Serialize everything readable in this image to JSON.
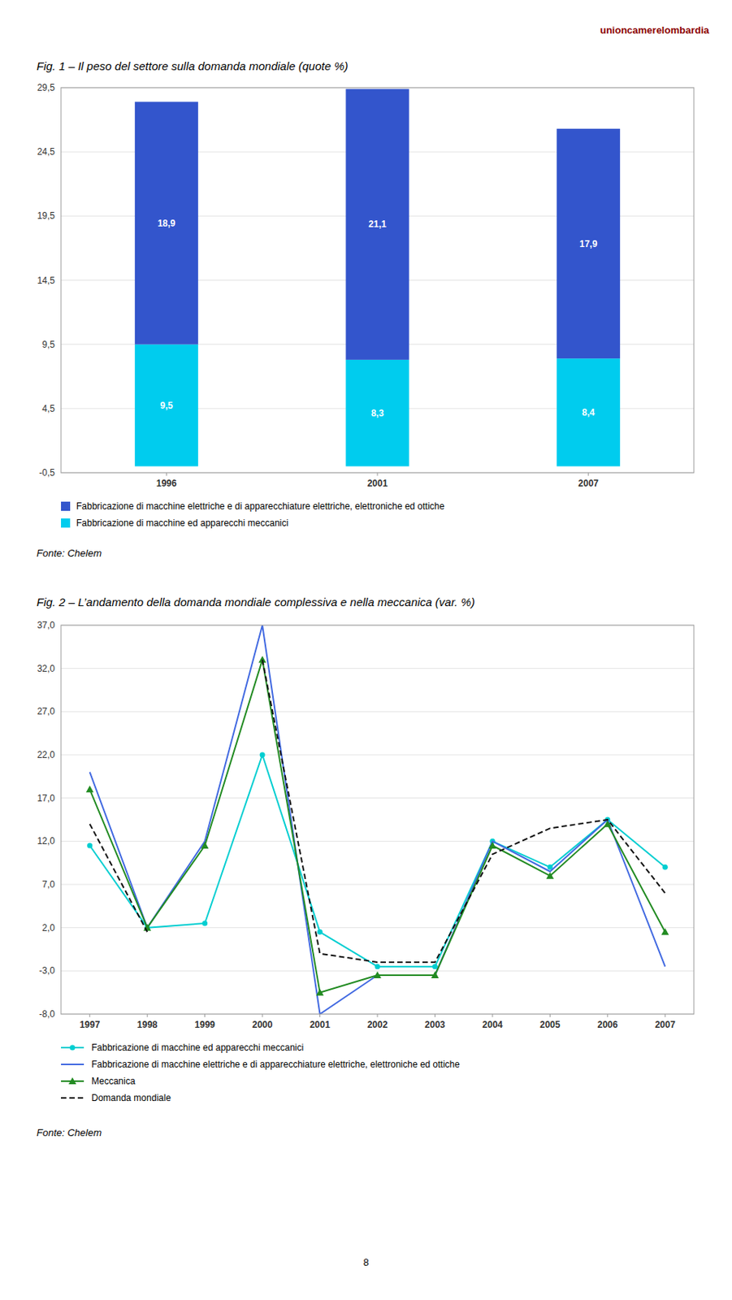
{
  "chart_data": [
    {
      "type": "bar",
      "stacked": true,
      "title": "Fig. 1 – Il peso del settore sulla domanda mondiale (quote %)",
      "categories": [
        "1996",
        "2001",
        "2007"
      ],
      "series": [
        {
          "name": "Fabbricazione di macchine ed apparecchi meccanici",
          "color": "#00CCEE",
          "values": [
            9.5,
            8.3,
            8.4
          ],
          "value_labels": [
            "9,5",
            "8,3",
            "8,4"
          ]
        },
        {
          "name": "Fabbricazione di macchine elettriche e di apparecchiature elettriche, elettroniche ed ottiche",
          "color": "#3355CC",
          "values": [
            18.9,
            21.1,
            17.9
          ],
          "value_labels": [
            "18,9",
            "21,1",
            "17,9"
          ]
        }
      ],
      "ylim": [
        -0.5,
        29.5
      ],
      "yticks": [
        {
          "value": -0.5,
          "label": "-0,5"
        },
        {
          "value": 4.5,
          "label": "4,5"
        },
        {
          "value": 9.5,
          "label": "9,5"
        },
        {
          "value": 14.5,
          "label": "14,5"
        },
        {
          "value": 19.5,
          "label": "19,5"
        },
        {
          "value": 24.5,
          "label": "24,5"
        },
        {
          "value": 29.5,
          "label": "29,5"
        }
      ],
      "grid": true,
      "legend": "bottom",
      "data_labels": true,
      "annotations": [
        "unioncamerelombardia",
        "Fonte: Chelem"
      ]
    },
    {
      "type": "line",
      "title": "Fig. 2 – L’andamento della domanda mondiale complessiva e nella meccanica (var. %)",
      "x": [
        1997,
        1998,
        1999,
        2000,
        2001,
        2002,
        2003,
        2004,
        2005,
        2006,
        2007
      ],
      "series": [
        {
          "name": "Fabbricazione di macchine ed apparecchi meccanici",
          "color": "#00CED1",
          "marker": "circle",
          "line_style": "solid",
          "values": [
            11.5,
            2.0,
            2.5,
            22.0,
            1.5,
            -2.5,
            -2.5,
            12.0,
            9.0,
            14.5,
            9.0
          ]
        },
        {
          "name": "Fabbricazione di macchine elettriche e di apparecchiature elettriche, elettroniche ed ottiche",
          "color": "#4169E1",
          "line_style": "solid",
          "values": [
            20.0,
            2.0,
            12.0,
            37.0,
            -8.0,
            -3.5,
            -3.5,
            12.0,
            8.5,
            14.5,
            -2.5
          ]
        },
        {
          "name": "Meccanica",
          "color": "#228B22",
          "marker": "triangle",
          "line_style": "solid",
          "values": [
            18.0,
            2.0,
            11.5,
            33.0,
            -5.5,
            -3.5,
            -3.5,
            11.5,
            8.0,
            14.0,
            1.5
          ]
        },
        {
          "name": "Domanda mondiale",
          "color": "#111111",
          "line_style": "dashed",
          "values": [
            14.0,
            1.5,
            null,
            33.0,
            -1.0,
            -2.0,
            -2.0,
            10.5,
            13.5,
            14.5,
            6.0
          ]
        }
      ],
      "xlim": [
        1996.5,
        2007.5
      ],
      "xticks": [
        1997,
        1998,
        1999,
        2000,
        2001,
        2002,
        2003,
        2004,
        2005,
        2006,
        2007
      ],
      "ylim": [
        -8.0,
        37.0
      ],
      "yticks": [
        {
          "value": -8.0,
          "label": "-8,0"
        },
        {
          "value": -3.0,
          "label": "-3,0"
        },
        {
          "value": 2.0,
          "label": "2,0"
        },
        {
          "value": 7.0,
          "label": "7,0"
        },
        {
          "value": 12.0,
          "label": "12,0"
        },
        {
          "value": 17.0,
          "label": "17,0"
        },
        {
          "value": 22.0,
          "label": "22,0"
        },
        {
          "value": 27.0,
          "label": "27,0"
        },
        {
          "value": 32.0,
          "label": "32,0"
        },
        {
          "value": 37.0,
          "label": "37,0"
        }
      ],
      "grid": true,
      "legend": "bottom",
      "annotations": [
        "Fonte: Chelem",
        "8"
      ]
    }
  ]
}
